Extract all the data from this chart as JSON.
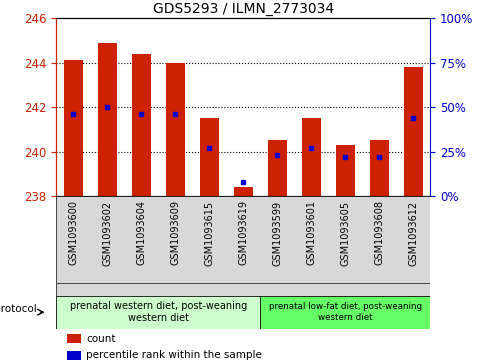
{
  "title": "GDS5293 / ILMN_2773034",
  "samples": [
    "GSM1093600",
    "GSM1093602",
    "GSM1093604",
    "GSM1093609",
    "GSM1093615",
    "GSM1093619",
    "GSM1093599",
    "GSM1093601",
    "GSM1093605",
    "GSM1093608",
    "GSM1093612"
  ],
  "counts": [
    244.1,
    244.9,
    244.4,
    244.0,
    241.5,
    238.4,
    240.5,
    241.5,
    240.3,
    240.5,
    243.8
  ],
  "percentiles": [
    46,
    50,
    46,
    46,
    27,
    8,
    23,
    27,
    22,
    22,
    44
  ],
  "ymin": 238,
  "ymax": 246,
  "yticks": [
    238,
    240,
    242,
    244,
    246
  ],
  "right_yticks": [
    0,
    25,
    50,
    75,
    100
  ],
  "group1_label": "prenatal western diet, post-weaning\nwestern diet",
  "group2_label": "prenatal low-fat diet, post-weaning\nwestern diet",
  "bar_color": "#cc2200",
  "dot_color": "#0000cc",
  "legend_count_label": "count",
  "legend_percentile_label": "percentile rank within the sample",
  "protocol_label": "protocol",
  "left_axis_color": "#cc2200",
  "right_axis_color": "#0000cc",
  "bar_width": 0.55,
  "group1_bg": "#ccffcc",
  "group2_bg": "#66ff66",
  "gray_bg": "#d8d8d8"
}
